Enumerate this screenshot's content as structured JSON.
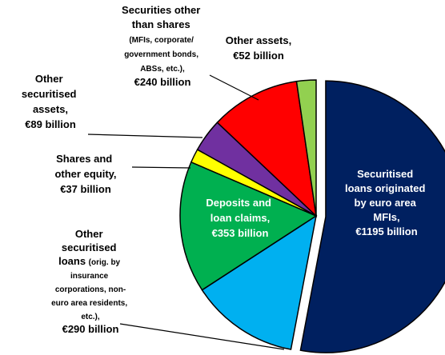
{
  "chart_data": {
    "type": "pie",
    "categories": [
      "Securitised loans originated by euro area MFIs,",
      "Other securitised loans (orig. by insurance corporations, non-euro area residents, etc.),",
      "Deposits and loan claims,",
      "Shares and other equity,",
      "Other securitised assets,",
      "Securities other than shares (MFIs, corporate/ government bonds, ABSs, etc.),",
      "Other assets,"
    ],
    "values": [
      1195,
      290,
      353,
      37,
      89,
      240,
      52
    ],
    "value_labels": [
      "€1195 billion",
      "€290 billion",
      "€353 billion",
      "€37 billion",
      "€89 billion",
      "€240 billion",
      "€52 billion"
    ],
    "colors": [
      "#002060",
      "#00b0f0",
      "#00b050",
      "#ffff00",
      "#7030a0",
      "#ff0000",
      "#92d050"
    ]
  }
}
